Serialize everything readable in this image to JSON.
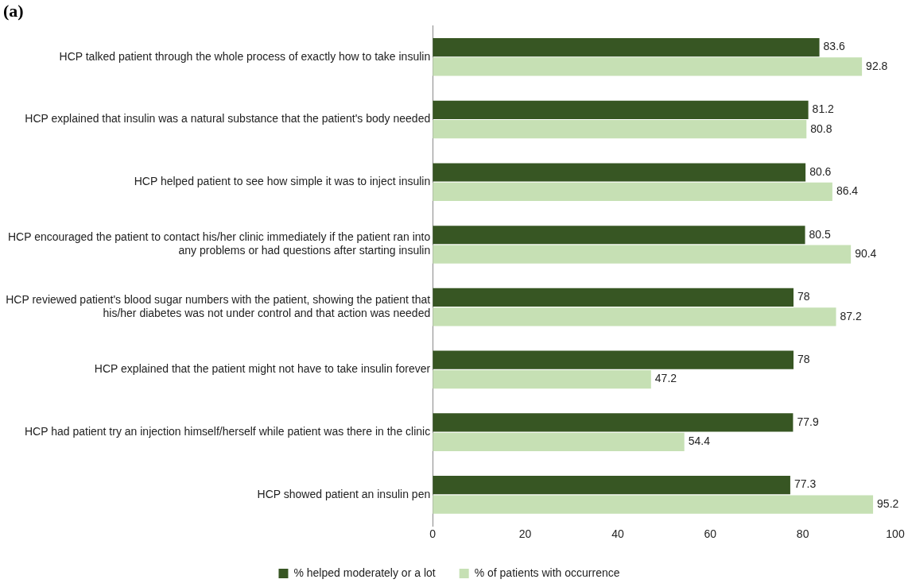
{
  "chart_data": {
    "type": "bar",
    "orientation": "horizontal",
    "title": "(a)",
    "categories": [
      "HCP talked patient through the whole process of exactly how to take insulin",
      "HCP explained that insulin was a natural substance that the patient's body needed",
      "HCP helped patient to see how simple it was to inject insulin",
      "HCP encouraged the patient to contact his/her clinic immediately if the patient ran into any problems or had questions after starting insulin",
      "HCP reviewed patient's blood sugar numbers with the patient, showing the patient that his/her diabetes was not under control and that action was needed",
      "HCP explained that the patient might not have to take insulin forever",
      "HCP had patient try an injection himself/herself while patient was there in the clinic",
      "HCP showed patient an insulin pen"
    ],
    "series": [
      {
        "name": "% helped moderately or a lot",
        "color": "#375623",
        "values": [
          83.6,
          81.2,
          80.6,
          80.5,
          78,
          78,
          77.9,
          77.3
        ]
      },
      {
        "name": "% of patients with occurrence",
        "color": "#c6e0b4",
        "values": [
          92.8,
          80.8,
          86.4,
          90.4,
          87.2,
          47.2,
          54.4,
          95.2
        ]
      }
    ],
    "xlim": [
      0,
      100
    ],
    "xticks": [
      0,
      20,
      40,
      60,
      80,
      100
    ],
    "grid": false,
    "legend": "bottom",
    "data_labels": true
  }
}
